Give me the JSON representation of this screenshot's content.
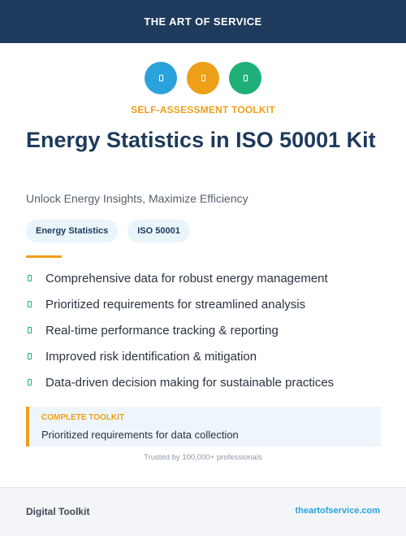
{
  "header": {
    "brand": "THE ART OF SERVICE"
  },
  "icons": [
    {
      "name": "file-icon-blue",
      "color": "#2aa3dc"
    },
    {
      "name": "file-icon-orange",
      "color": "#eea01a"
    },
    {
      "name": "file-icon-green",
      "color": "#1fb07a"
    }
  ],
  "eyebrow": "SELF-ASSESSMENT TOOLKIT",
  "title": "Energy Statistics in ISO 50001 Kit",
  "subtitle": "Unlock Energy Insights, Maximize Efficiency",
  "tags": [
    "Energy Statistics",
    "ISO 50001"
  ],
  "features": [
    "Comprehensive data for robust energy management",
    "Prioritized requirements for streamlined analysis",
    "Real-time performance tracking & reporting",
    "Improved risk identification & mitigation",
    "Data-driven decision making for sustainable practices"
  ],
  "callout": {
    "label": "COMPLETE TOOLKIT",
    "text": "Prioritized requirements for data collection"
  },
  "trusted": "Trusted by 100,000+ professionals",
  "footer": {
    "left": "Digital Toolkit",
    "right": "theartofservice.com"
  },
  "colors": {
    "navy": "#1e3a5c",
    "accent_orange": "#eea01a",
    "accent_blue": "#2aa3dc",
    "accent_green": "#1fb07a",
    "tag_bg": "#eaf4fb",
    "callout_bg": "#eef5fb"
  }
}
